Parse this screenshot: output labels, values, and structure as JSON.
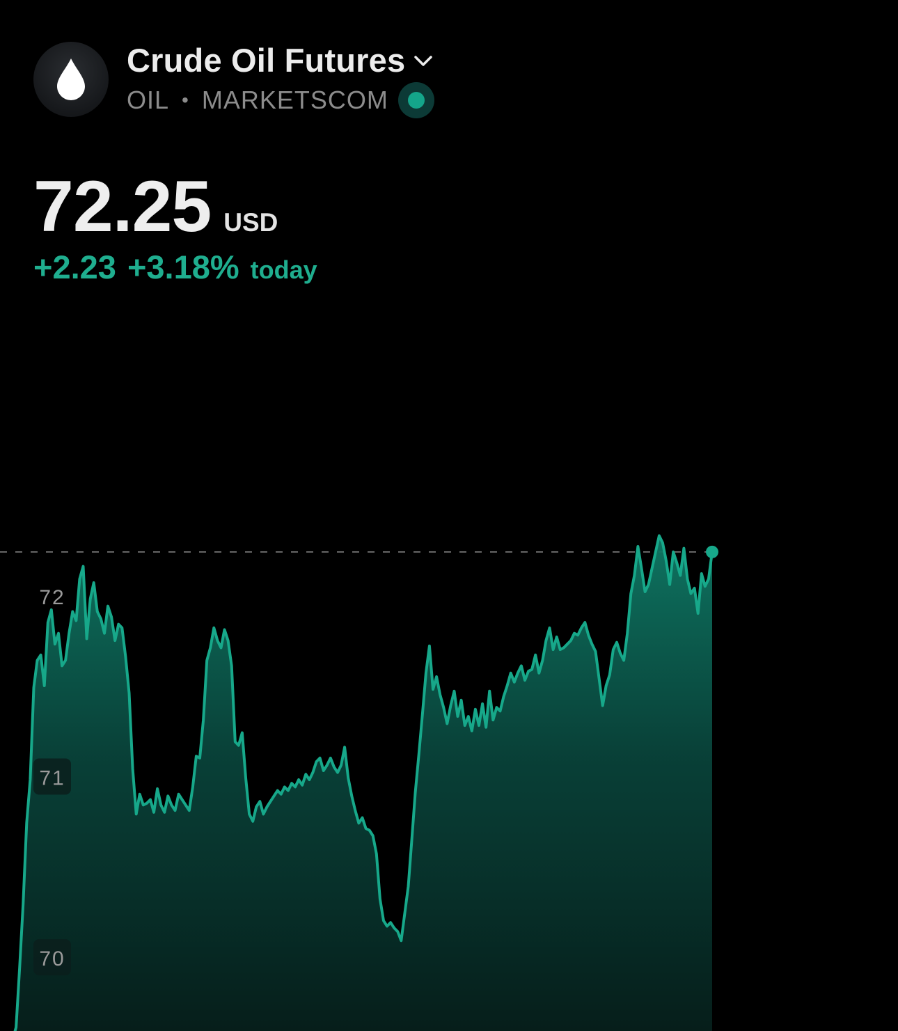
{
  "instrument": {
    "name": "Crude Oil Futures",
    "symbol": "OIL",
    "separator": "•",
    "exchange": "MARKETSCOM",
    "logo_icon": "oil-drop-icon",
    "dropdown_icon": "chevron-down-icon",
    "status_icon": "live-status-icon"
  },
  "quote": {
    "price": "72.25",
    "currency": "USD",
    "change_abs": "+2.23",
    "change_pct": "+3.18%",
    "change_label": "today"
  },
  "colors": {
    "background": "#000000",
    "accent": "#1fae8f",
    "line": "#17a88a",
    "muted": "#8c8c8c"
  },
  "chart_data": {
    "type": "area",
    "title": "",
    "xlabel": "",
    "ylabel": "",
    "ylim": [
      69.6,
      72.8
    ],
    "ticks": [
      {
        "value": 72,
        "label": "72"
      },
      {
        "value": 71,
        "label": "71"
      },
      {
        "value": 70,
        "label": "70"
      }
    ],
    "reference_value": 72.25,
    "grid": false,
    "legend": "none",
    "series": [
      {
        "values": [
          69.55,
          69.62,
          69.95,
          70.3,
          70.75,
          70.99,
          71.5,
          71.65,
          71.68,
          71.51,
          71.86,
          71.93,
          71.74,
          71.8,
          71.62,
          71.65,
          71.8,
          71.92,
          71.87,
          72.1,
          72.17,
          71.77,
          71.99,
          72.08,
          71.92,
          71.88,
          71.8,
          71.95,
          71.89,
          71.76,
          71.85,
          71.83,
          71.67,
          71.47,
          71.05,
          70.8,
          70.91,
          70.85,
          70.86,
          70.88,
          70.81,
          70.94,
          70.85,
          70.81,
          70.9,
          70.85,
          70.82,
          70.91,
          70.88,
          70.85,
          70.82,
          70.95,
          71.12,
          71.11,
          71.32,
          71.65,
          71.72,
          71.83,
          71.76,
          71.72,
          71.82,
          71.76,
          71.62,
          71.2,
          71.18,
          71.25,
          71.0,
          70.8,
          70.76,
          70.84,
          70.87,
          70.8,
          70.84,
          70.87,
          70.9,
          70.93,
          70.91,
          70.95,
          70.93,
          70.97,
          70.95,
          70.99,
          70.96,
          71.02,
          70.99,
          71.03,
          71.09,
          71.11,
          71.04,
          71.07,
          71.11,
          71.06,
          71.03,
          71.07,
          71.17,
          71.0,
          70.9,
          70.82,
          70.75,
          70.78,
          70.72,
          70.71,
          70.68,
          70.58,
          70.33,
          70.21,
          70.18,
          70.2,
          70.17,
          70.15,
          70.1,
          70.25,
          70.4,
          70.66,
          70.92,
          71.13,
          71.35,
          71.58,
          71.73,
          71.49,
          71.56,
          71.46,
          71.39,
          71.3,
          71.4,
          71.48,
          71.34,
          71.43,
          71.29,
          71.34,
          71.26,
          71.38,
          71.29,
          71.41,
          71.28,
          71.48,
          71.32,
          71.39,
          71.37,
          71.45,
          71.51,
          71.58,
          71.53,
          71.58,
          71.62,
          71.54,
          71.59,
          71.6,
          71.68,
          71.58,
          71.65,
          71.76,
          71.83,
          71.71,
          71.78,
          71.71,
          71.72,
          71.74,
          71.76,
          71.8,
          71.79,
          71.83,
          71.86,
          71.79,
          71.74,
          71.7,
          71.55,
          71.4,
          71.51,
          71.57,
          71.71,
          71.75,
          71.69,
          71.65,
          71.8,
          72.02,
          72.12,
          72.28,
          72.16,
          72.03,
          72.07,
          72.16,
          72.25,
          72.34,
          72.3,
          72.2,
          72.07,
          72.25,
          72.19,
          72.12,
          72.27,
          72.1,
          72.02,
          72.05,
          71.91,
          72.13,
          72.06,
          72.1,
          72.25
        ]
      }
    ]
  }
}
